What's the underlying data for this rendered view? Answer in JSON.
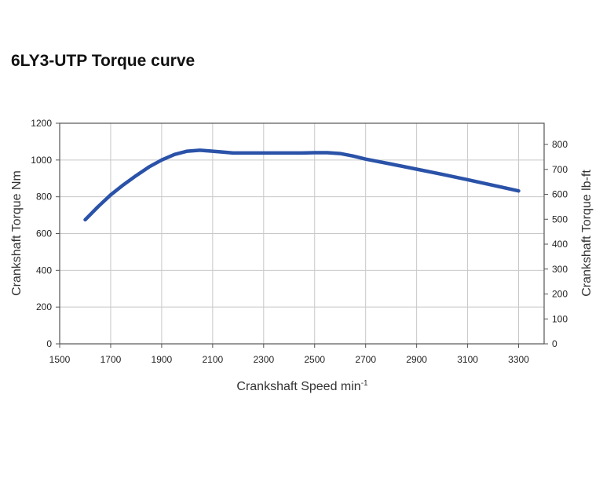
{
  "chart_data": {
    "type": "line",
    "title": "6LY3-UTP Torque curve",
    "xlabel": "Crankshaft Speed min",
    "xlabel_superscript": "-1",
    "ylabel": "Crankshaft Torque  Nm",
    "y2label": "Crankshaft Torque  lb-ft",
    "xlim": [
      1500,
      3400
    ],
    "ylim": [
      0,
      1200
    ],
    "y2lim": [
      0,
      885.1
    ],
    "x_ticks": [
      1500,
      1700,
      1900,
      2100,
      2300,
      2500,
      2700,
      2900,
      3100,
      3300
    ],
    "y_ticks": [
      0,
      200,
      400,
      600,
      800,
      1000,
      1200
    ],
    "y2_ticks": [
      0,
      100,
      200,
      300,
      400,
      500,
      600,
      700,
      800
    ],
    "grid": true,
    "line_color": "#2a52a8",
    "series": [
      {
        "x": [
          1600,
          1650,
          1700,
          1750,
          1800,
          1850,
          1900,
          1950,
          2000,
          2050,
          2100,
          2150,
          2180,
          2250,
          2350,
          2450,
          2500,
          2550,
          2600,
          2650,
          2700,
          2800,
          2900,
          3000,
          3100,
          3200,
          3300
        ],
        "y": [
          675,
          745,
          810,
          865,
          915,
          962,
          1000,
          1030,
          1048,
          1053,
          1048,
          1042,
          1038,
          1038,
          1038,
          1038,
          1040,
          1040,
          1035,
          1022,
          1005,
          978,
          950,
          922,
          893,
          862,
          832
        ]
      }
    ]
  }
}
